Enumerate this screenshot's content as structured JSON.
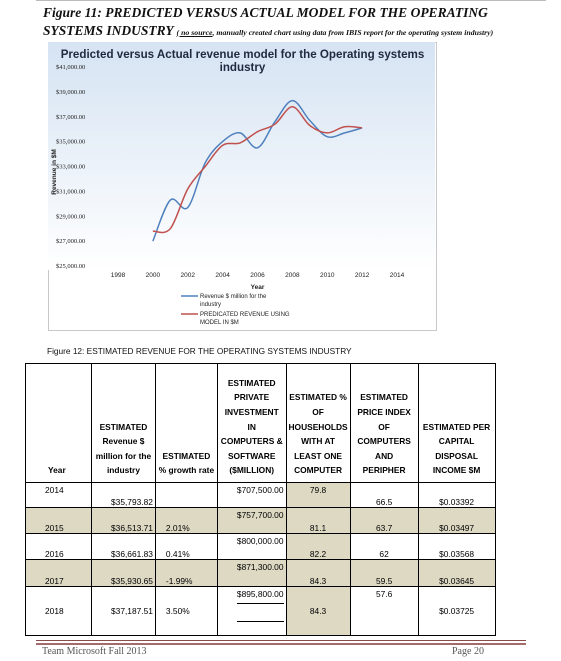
{
  "document": {
    "figure11_title": "Figure 11:  PREDICTED VERSUS ACTUAL MODEL FOR THE OPERATING SYSTEMS INDUSTRY",
    "figure11_source_underlined": "( no source",
    "figure11_source_rest": ", manually created chart using data from IBIS report for the operating system industry)",
    "figure12_caption": "Figure 12:  ESTIMATED REVENUE FOR THE OPERATING SYSTEMS INDUSTRY",
    "footer_left": "Team Microsoft Fall 2013",
    "footer_right": "Page 20"
  },
  "chart_data": {
    "type": "line",
    "title": "Predicted versus Actual revenue model for the Operating systems industry",
    "xlabel": "Year",
    "ylabel": "Revenue in $M",
    "xlim": [
      1998,
      2014
    ],
    "ylim": [
      25000,
      41000
    ],
    "x_ticks": [
      "1998",
      "2000",
      "2002",
      "2004",
      "2006",
      "2008",
      "2010",
      "2012",
      "2014"
    ],
    "y_ticks": [
      "$41,000.00",
      "$39,000.00",
      "$37,000.00",
      "$35,000.00",
      "$33,000.00",
      "$31,000.00",
      "$29,000.00",
      "$27,000.00",
      "$25,000.00"
    ],
    "legend_position": "bottom",
    "series": [
      {
        "name": "Revenue $ million for the industry",
        "color": "#4f81bd",
        "x": [
          2000,
          2001,
          2002,
          2003,
          2004,
          2005,
          2006,
          2007,
          2008,
          2009,
          2010,
          2011,
          2012
        ],
        "y": [
          27000,
          30300,
          29700,
          33300,
          35000,
          35700,
          34500,
          36600,
          38300,
          36700,
          35400,
          35700,
          36100
        ]
      },
      {
        "name": "PREDICATED REVENUE USING MODEL IN $M",
        "color": "#c0504d",
        "x": [
          2000,
          2001,
          2002,
          2003,
          2004,
          2005,
          2006,
          2007,
          2008,
          2009,
          2010,
          2011,
          2012
        ],
        "y": [
          27800,
          28000,
          31200,
          33000,
          34700,
          34900,
          35800,
          36400,
          37800,
          36300,
          35700,
          36200,
          36100
        ]
      }
    ]
  },
  "table": {
    "headers": [
      "Year",
      "ESTIMATED Revenue $ million for the industry",
      "ESTIMATED % growth rate",
      "ESTIMATED PRIVATE INVESTMENT IN COMPUTERS & SOFTWARE ($MILLION)",
      "ESTIMATED % OF HOUSEHOLDS WITH AT LEAST ONE COMPUTER",
      "ESTIMATED PRICE INDEX OF COMPUTERS AND PERIPHER",
      "ESTIMATED PER CAPITAL DISPOSAL INCOME $M"
    ],
    "rows": [
      {
        "year": "2014",
        "revenue": "$35,793.82",
        "growth": "",
        "investment_top": "$707,500.00",
        "investment_bottom": "",
        "households": "79.8",
        "price_index": "66.5",
        "income": "$0.03392"
      },
      {
        "year": "2015",
        "revenue": "$36,513.71",
        "growth": "2.01%",
        "investment_top": "$757,700.00",
        "investment_bottom": "",
        "households": "81.1",
        "price_index": "63.7",
        "income": "$0.03497"
      },
      {
        "year": "2016",
        "revenue": "$36,661.83",
        "growth": "0.41%",
        "investment_top": "$800,000.00",
        "investment_bottom": "",
        "households": "82.2",
        "price_index": "62",
        "income": "$0.03568"
      },
      {
        "year": "2017",
        "revenue": "$35,930.65",
        "growth": "-1.99%",
        "investment_top": "$871,300.00",
        "investment_bottom": "",
        "households": "84.3",
        "price_index": "59.5",
        "income": "$0.03645"
      },
      {
        "year": "2018",
        "revenue": "$37,187.51",
        "growth": "3.50%",
        "investment_top": "$895,800.00",
        "investment_bottom": "",
        "households": "84.3",
        "price_index": "57.6",
        "income": "$0.03725"
      }
    ]
  }
}
